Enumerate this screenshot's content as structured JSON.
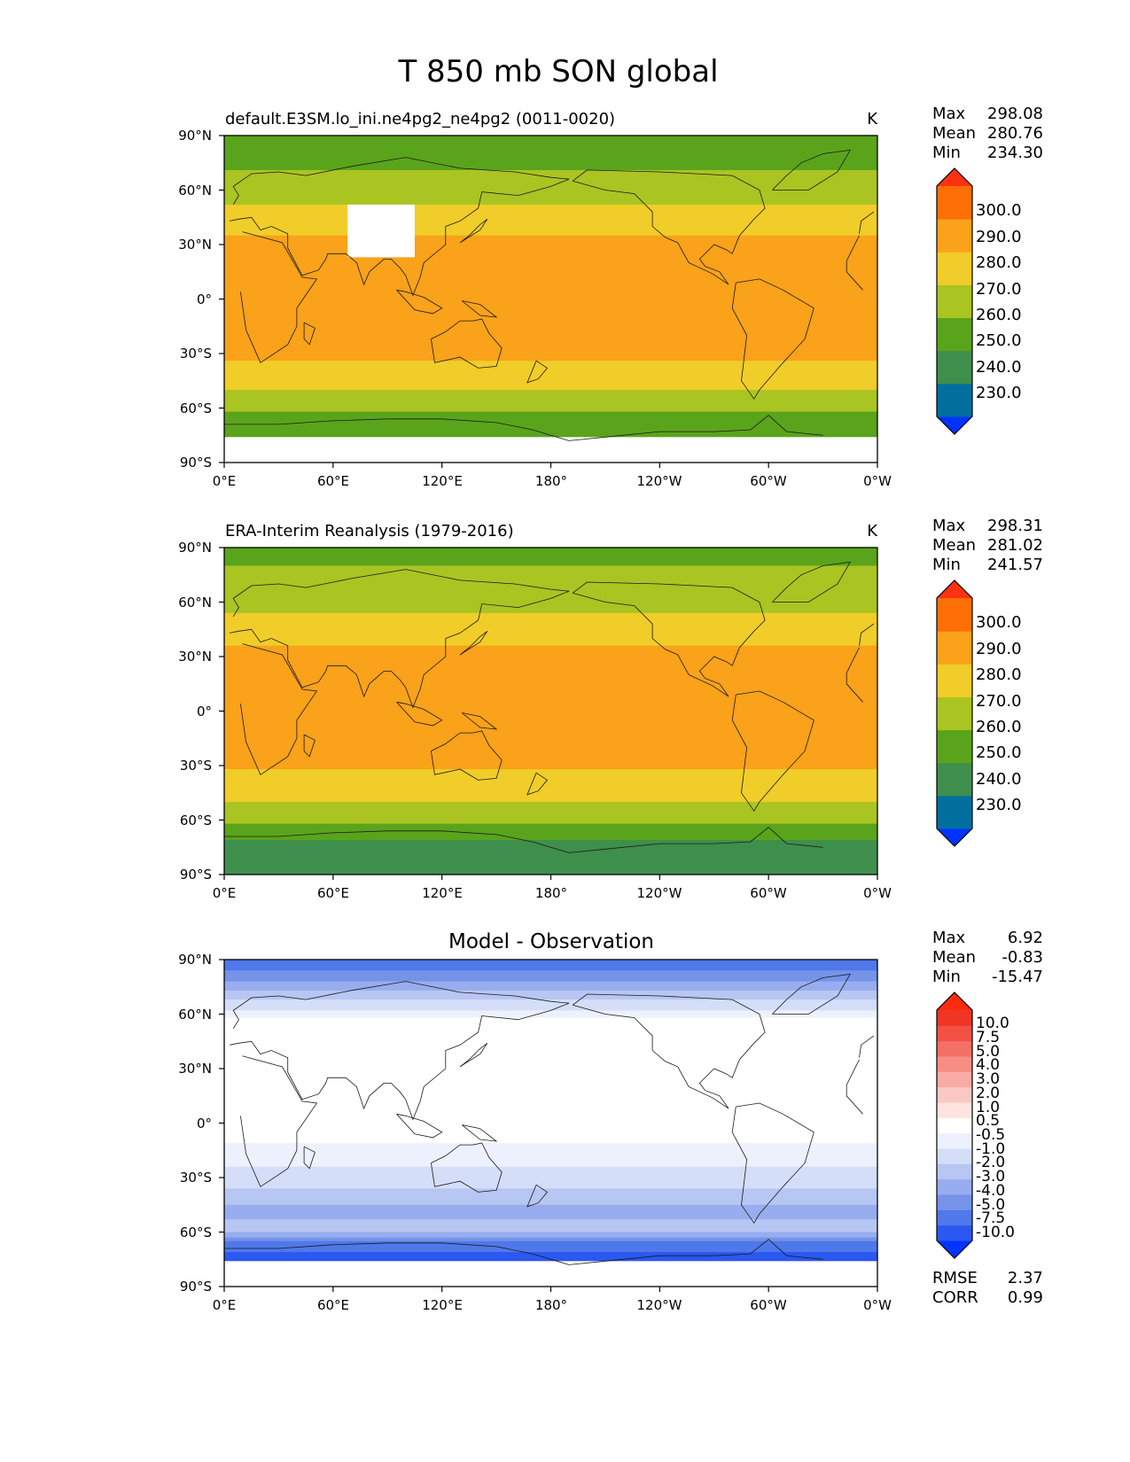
{
  "figure_title": "T 850 mb SON global",
  "colors": {
    "abs": [
      "#0033ff",
      "#006f9e",
      "#3f8f4c",
      "#5aa41c",
      "#aac422",
      "#f0cd28",
      "#f9a21a",
      "#fe6f06",
      "#fe3210"
    ],
    "diff": [
      "#0033ff",
      "#2b58f0",
      "#4f78ea",
      "#7593e9",
      "#98adef",
      "#b8c6f3",
      "#d5def9",
      "#edf1fd",
      "#ffffff",
      "#fde4e1",
      "#fbc9c3",
      "#f9aca4",
      "#f78e84",
      "#f47066",
      "#f25144",
      "#f03525",
      "#fe2b0d"
    ]
  },
  "chart_data": [
    {
      "type": "heatmap",
      "title": "default.E3SM.lo_ini.ne4pg2_ne4pg2 (0011-0020)",
      "units": "K",
      "stats": {
        "max_label": "Max",
        "max": "298.08",
        "mean_label": "Mean",
        "mean": "280.76",
        "min_label": "Min",
        "min": "234.30"
      },
      "colorbar": {
        "levels": [
          220,
          230,
          240,
          250,
          260,
          270,
          280,
          290,
          300,
          310
        ],
        "tick_values": [
          230,
          240,
          250,
          260,
          270,
          280,
          290,
          300
        ],
        "tick_labels": [
          "230.0",
          "240.0",
          "250.0",
          "260.0",
          "270.0",
          "280.0",
          "290.0",
          "300.0"
        ]
      },
      "lat_ticks": [
        "90°N",
        "60°N",
        "30°N",
        "0°",
        "30°S",
        "60°S",
        "90°S"
      ],
      "lon_ticks": [
        "0°E",
        "60°E",
        "120°E",
        "180°",
        "120°W",
        "60°W",
        "0°W"
      ],
      "xlim": [
        0,
        360
      ],
      "ylim": [
        -90,
        90
      ],
      "zonal_profile": [
        {
          "lat": 90,
          "value": 255
        },
        {
          "lat": 75,
          "value": 258
        },
        {
          "lat": 62,
          "value": 264
        },
        {
          "lat": 45,
          "value": 274
        },
        {
          "lat": 30,
          "value": 283
        },
        {
          "lat": 15,
          "value": 287
        },
        {
          "lat": 0,
          "value": 288
        },
        {
          "lat": -15,
          "value": 286
        },
        {
          "lat": -30,
          "value": 282
        },
        {
          "lat": -45,
          "value": 274
        },
        {
          "lat": -55,
          "value": 266
        },
        {
          "lat": -65,
          "value": 257
        },
        {
          "lat": -75,
          "value": 250
        }
      ],
      "missing_regions": [
        {
          "lon": [
            68,
            105
          ],
          "lat": [
            23,
            52
          ]
        },
        {
          "lon": [
            0,
            360
          ],
          "lat": [
            -90,
            -76
          ]
        }
      ]
    },
    {
      "type": "heatmap",
      "title": "ERA-Interim Reanalysis (1979-2016)",
      "units": "K",
      "stats": {
        "max_label": "Max",
        "max": "298.31",
        "mean_label": "Mean",
        "mean": "281.02",
        "min_label": "Min",
        "min": "241.57"
      },
      "colorbar": {
        "levels": [
          220,
          230,
          240,
          250,
          260,
          270,
          280,
          290,
          300,
          310
        ],
        "tick_values": [
          230,
          240,
          250,
          260,
          270,
          280,
          290,
          300
        ],
        "tick_labels": [
          "230.0",
          "240.0",
          "250.0",
          "260.0",
          "270.0",
          "280.0",
          "290.0",
          "300.0"
        ]
      },
      "lat_ticks": [
        "90°N",
        "60°N",
        "30°N",
        "0°",
        "30°S",
        "60°S",
        "90°S"
      ],
      "lon_ticks": [
        "0°E",
        "60°E",
        "120°E",
        "180°",
        "120°W",
        "60°W",
        "0°W"
      ],
      "xlim": [
        0,
        360
      ],
      "ylim": [
        -90,
        90
      ],
      "zonal_profile": [
        {
          "lat": 90,
          "value": 258
        },
        {
          "lat": 75,
          "value": 261
        },
        {
          "lat": 62,
          "value": 266
        },
        {
          "lat": 45,
          "value": 275
        },
        {
          "lat": 30,
          "value": 283
        },
        {
          "lat": 15,
          "value": 288
        },
        {
          "lat": 0,
          "value": 288
        },
        {
          "lat": -15,
          "value": 286
        },
        {
          "lat": -30,
          "value": 281
        },
        {
          "lat": -45,
          "value": 274
        },
        {
          "lat": -55,
          "value": 266
        },
        {
          "lat": -65,
          "value": 257
        },
        {
          "lat": -75,
          "value": 246
        },
        {
          "lat": -90,
          "value": 244
        }
      ],
      "missing_regions": []
    },
    {
      "type": "heatmap",
      "title": "Model - Observation",
      "units": "",
      "stats": {
        "max_label": "Max",
        "max": "6.92",
        "mean_label": "Mean",
        "mean": "-0.83",
        "min_label": "Min",
        "min": "-15.47"
      },
      "colorbar": {
        "levels": [
          -15,
          -10,
          -7.5,
          -5,
          -4,
          -3,
          -2,
          -1,
          -0.5,
          0.5,
          1,
          2,
          3,
          4,
          5,
          7.5,
          10,
          15
        ],
        "tick_values": [
          -10,
          -7.5,
          -5,
          -4,
          -3,
          -2,
          -1,
          -0.5,
          0.5,
          1,
          2,
          3,
          4,
          5,
          7.5,
          10
        ],
        "tick_labels": [
          "-10.0",
          "-7.5",
          "-5.0",
          "-4.0",
          "-3.0",
          "-2.0",
          "-1.0",
          "-0.5",
          "0.5",
          "1.0",
          "2.0",
          "3.0",
          "4.0",
          "5.0",
          "7.5",
          "10.0"
        ]
      },
      "rmse_label": "RMSE",
      "rmse": "2.37",
      "corr_label": "CORR",
      "corr": "0.99",
      "lat_ticks": [
        "90°N",
        "60°N",
        "30°N",
        "0°",
        "30°S",
        "60°S",
        "90°S"
      ],
      "lon_ticks": [
        "0°E",
        "60°E",
        "120°E",
        "180°",
        "120°W",
        "60°W",
        "0°W"
      ],
      "xlim": [
        0,
        360
      ],
      "ylim": [
        -90,
        90
      ],
      "zonal_profile": [
        {
          "lat": 90,
          "value": -6
        },
        {
          "lat": 78,
          "value": -4
        },
        {
          "lat": 65,
          "value": -1.5
        },
        {
          "lat": 55,
          "value": 0
        },
        {
          "lat": 40,
          "value": 0.3
        },
        {
          "lat": 20,
          "value": 0
        },
        {
          "lat": 0,
          "value": 0
        },
        {
          "lat": -15,
          "value": -0.7
        },
        {
          "lat": -30,
          "value": -1.2
        },
        {
          "lat": -40,
          "value": -2.5
        },
        {
          "lat": -50,
          "value": -3.5
        },
        {
          "lat": -58,
          "value": -2
        },
        {
          "lat": -65,
          "value": -5
        },
        {
          "lat": -75,
          "value": -9
        }
      ],
      "missing_regions": [
        {
          "lon": [
            68,
            105
          ],
          "lat": [
            23,
            52
          ]
        },
        {
          "lon": [
            0,
            360
          ],
          "lat": [
            -90,
            -76
          ]
        }
      ]
    }
  ]
}
